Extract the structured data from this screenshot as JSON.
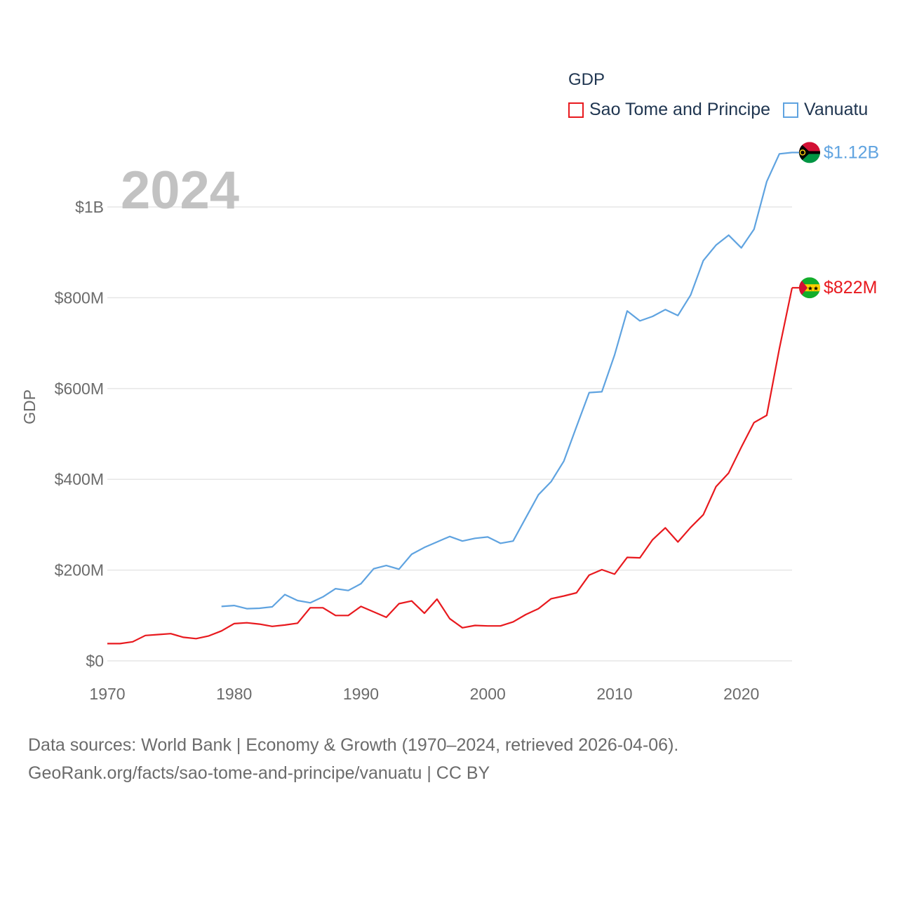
{
  "legend": {
    "title": "GDP",
    "items": [
      {
        "name": "Sao Tome and Principe",
        "color": "#e8191e"
      },
      {
        "name": "Vanuatu",
        "color": "#5fa3e0"
      }
    ]
  },
  "year_label": "2024",
  "footer": {
    "line1": "Data sources: World Bank | Economy & Growth (1970–2024, retrieved 2026-04-06).",
    "line2": "GeoRank.org/facts/sao-tome-and-principe/vanuatu | CC BY"
  },
  "chart_data": {
    "type": "line",
    "ylabel": "GDP",
    "xlabel": "",
    "xlim": [
      1970,
      2024
    ],
    "ylim": [
      0,
      1150
    ],
    "y_unit": "millions USD",
    "x_ticks": [
      1970,
      1980,
      1990,
      2000,
      2010,
      2020
    ],
    "y_ticks": [
      {
        "value": 0,
        "label": "$0"
      },
      {
        "value": 200,
        "label": "$200M"
      },
      {
        "value": 400,
        "label": "$400M"
      },
      {
        "value": 600,
        "label": "$600M"
      },
      {
        "value": 800,
        "label": "$800M"
      },
      {
        "value": 1000,
        "label": "$1B"
      }
    ],
    "grid": true,
    "series": [
      {
        "name": "Sao Tome and Principe",
        "color": "#e8191e",
        "end_label": "$822M",
        "flag": "sao-tome-flag-icon",
        "x": [
          1970,
          1971,
          1972,
          1973,
          1974,
          1975,
          1976,
          1977,
          1978,
          1979,
          1980,
          1981,
          1982,
          1983,
          1984,
          1985,
          1986,
          1987,
          1988,
          1989,
          1990,
          1991,
          1992,
          1993,
          1994,
          1995,
          1996,
          1997,
          1998,
          1999,
          2000,
          2001,
          2002,
          2003,
          2004,
          2005,
          2006,
          2007,
          2008,
          2009,
          2010,
          2011,
          2012,
          2013,
          2014,
          2015,
          2016,
          2017,
          2018,
          2019,
          2020,
          2021,
          2022,
          2023,
          2024
        ],
        "values": [
          38,
          38,
          42,
          56,
          58,
          60,
          52,
          49,
          55,
          66,
          82,
          84,
          81,
          76,
          79,
          83,
          117,
          117,
          100,
          100,
          120,
          108,
          96,
          126,
          132,
          105,
          136,
          93,
          73,
          78,
          77,
          77,
          86,
          102,
          115,
          137,
          143,
          150,
          189,
          201,
          191,
          228,
          227,
          267,
          293,
          262,
          294,
          322,
          384,
          414,
          471,
          525,
          541,
          688,
          822
        ]
      },
      {
        "name": "Vanuatu",
        "color": "#5fa3e0",
        "end_label": "$1.12B",
        "flag": "vanuatu-flag-icon",
        "x": [
          1979,
          1980,
          1981,
          1982,
          1983,
          1984,
          1985,
          1986,
          1987,
          1988,
          1989,
          1990,
          1991,
          1992,
          1993,
          1994,
          1995,
          1996,
          1997,
          1998,
          1999,
          2000,
          2001,
          2002,
          2003,
          2004,
          2005,
          2006,
          2007,
          2008,
          2009,
          2010,
          2011,
          2012,
          2013,
          2014,
          2015,
          2016,
          2017,
          2018,
          2019,
          2020,
          2021,
          2022,
          2023,
          2024
        ],
        "values": [
          120,
          122,
          115,
          116,
          119,
          146,
          133,
          128,
          141,
          159,
          155,
          170,
          203,
          210,
          202,
          235,
          250,
          262,
          274,
          264,
          270,
          273,
          259,
          264,
          315,
          366,
          395,
          440,
          516,
          591,
          593,
          674,
          771,
          749,
          759,
          774,
          761,
          806,
          882,
          916,
          938,
          910,
          951,
          1056,
          1117,
          1120
        ]
      }
    ]
  }
}
